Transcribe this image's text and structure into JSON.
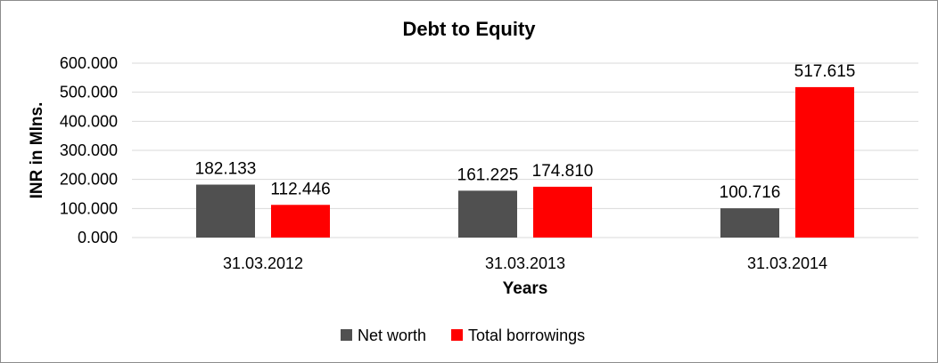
{
  "chart_data": {
    "type": "bar",
    "title": "Debt to Equity",
    "xlabel": "Years",
    "ylabel": "INR in Mlns.",
    "categories": [
      "31.03.2012",
      "31.03.2013",
      "31.03.2014"
    ],
    "series": [
      {
        "name": "Net worth",
        "color": "#505050",
        "values": [
          182.133,
          161.225,
          100.716
        ],
        "labels": [
          "182.133",
          "161.225",
          "100.716"
        ]
      },
      {
        "name": "Total borrowings",
        "color": "#ff0000",
        "values": [
          112.446,
          174.81,
          517.615
        ],
        "labels": [
          "112.446",
          "174.810",
          "517.615"
        ]
      }
    ],
    "ylim": [
      0,
      600
    ],
    "yticks": [
      0,
      100,
      200,
      300,
      400,
      500,
      600
    ],
    "ytick_labels": [
      "0.000",
      "100.000",
      "200.000",
      "300.000",
      "400.000",
      "500.000",
      "600.000"
    ],
    "grid": true,
    "legend": "bottom"
  }
}
